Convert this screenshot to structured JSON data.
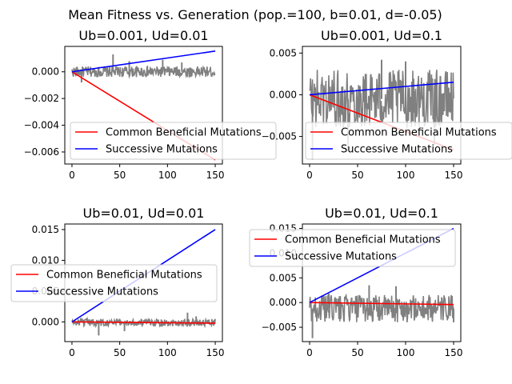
{
  "suptitle": "Mean Fitness vs. Generation (pop.=100, b=0.01, d=-0.05)",
  "colors": {
    "beneficial": "#ff0000",
    "successive": "#0000ff",
    "noise": "#808080",
    "legend_border": "#cccccc"
  },
  "chart_data": [
    {
      "type": "line",
      "title": "Ub=0.001, Ud=0.01",
      "xlim": [
        -7.5,
        157.5
      ],
      "ylim": [
        -0.0069,
        0.0019
      ],
      "xticks": [
        0,
        50,
        100,
        150
      ],
      "xtick_labels": [
        "0",
        "50",
        "100",
        "150"
      ],
      "yticks": [
        0.0,
        -0.002,
        -0.004,
        -0.006
      ],
      "ytick_labels": [
        "0.000",
        "−0.002",
        "−0.004",
        "−0.006"
      ],
      "noise_band": {
        "center": 0.0,
        "half_width": 0.0004,
        "spikes": [
          [
            10,
            -0.0008
          ],
          [
            43,
            0.0013
          ],
          [
            60,
            0.0008
          ],
          [
            95,
            0.0009
          ],
          [
            115,
            0.0007
          ]
        ]
      },
      "series": [
        {
          "name": "Common Beneficial Mutations",
          "x": [
            0,
            150
          ],
          "y": [
            0.0,
            -0.0066
          ]
        },
        {
          "name": "Successive Mutations",
          "x": [
            0,
            150
          ],
          "y": [
            0.0,
            0.00155
          ]
        }
      ],
      "legend": "lower-left"
    },
    {
      "type": "line",
      "title": "Ub=0.001, Ud=0.1",
      "xlim": [
        -7.5,
        157.5
      ],
      "ylim": [
        -0.0083,
        0.0058
      ],
      "xticks": [
        0,
        50,
        100,
        150
      ],
      "xtick_labels": [
        "0",
        "50",
        "100",
        "150"
      ],
      "yticks": [
        0.005,
        0.0,
        -0.005
      ],
      "ytick_labels": [
        "0.005",
        "0.000",
        "−0.005"
      ],
      "noise_band": {
        "center": -0.0005,
        "half_width": 0.0035,
        "spikes": [
          [
            3,
            -0.0078
          ],
          [
            40,
            -0.0068
          ],
          [
            75,
            0.0042
          ],
          [
            100,
            0.004
          ],
          [
            130,
            -0.006
          ]
        ]
      },
      "series": [
        {
          "name": "Common Beneficial Mutations",
          "x": [
            0,
            150
          ],
          "y": [
            0.0,
            -0.0066
          ]
        },
        {
          "name": "Successive Mutations",
          "x": [
            0,
            150
          ],
          "y": [
            0.0,
            0.0015
          ]
        }
      ],
      "legend": "lower-right"
    },
    {
      "type": "line",
      "title": "Ub=0.01, Ud=0.01",
      "xlim": [
        -7.5,
        157.5
      ],
      "ylim": [
        -0.0032,
        0.0159
      ],
      "xticks": [
        0,
        50,
        100,
        150
      ],
      "xtick_labels": [
        "0",
        "50",
        "100",
        "150"
      ],
      "yticks": [
        0.015,
        0.01,
        0.005,
        0.0
      ],
      "ytick_labels": [
        "0.015",
        "0.010",
        "0.005",
        "0.000"
      ],
      "noise_band": {
        "center": -0.0001,
        "half_width": 0.0006,
        "spikes": [
          [
            28,
            -0.0022
          ],
          [
            55,
            -0.0015
          ],
          [
            121,
            0.0015
          ],
          [
            130,
            0.0009
          ]
        ]
      },
      "series": [
        {
          "name": "Common Beneficial Mutations",
          "x": [
            0,
            150
          ],
          "y": [
            0.0,
            -0.0002
          ]
        },
        {
          "name": "Successive Mutations",
          "x": [
            0,
            150
          ],
          "y": [
            0.0,
            0.015
          ]
        }
      ],
      "legend": "center-left"
    },
    {
      "type": "line",
      "title": "Ub=0.01, Ud=0.1",
      "xlim": [
        -7.5,
        157.5
      ],
      "ylim": [
        -0.0079,
        0.0159
      ],
      "xticks": [
        0,
        50,
        100,
        150
      ],
      "xtick_labels": [
        "0",
        "50",
        "100",
        "150"
      ],
      "yticks": [
        0.015,
        0.01,
        0.005,
        0.0,
        -0.005
      ],
      "ytick_labels": [
        "0.015",
        "0.010",
        "0.005",
        "0.000",
        "−0.005"
      ],
      "noise_band": {
        "center": -0.0012,
        "half_width": 0.0028,
        "spikes": [
          [
            3,
            -0.0072
          ],
          [
            20,
            0.0018
          ],
          [
            62,
            0.0035
          ],
          [
            90,
            0.0033
          ],
          [
            150,
            -0.004
          ]
        ]
      },
      "series": [
        {
          "name": "Common Beneficial Mutations",
          "x": [
            0,
            150
          ],
          "y": [
            0.0,
            -0.0004
          ]
        },
        {
          "name": "Successive Mutations",
          "x": [
            0,
            150
          ],
          "y": [
            0.0,
            0.015
          ]
        }
      ],
      "legend": "upper-left"
    }
  ]
}
